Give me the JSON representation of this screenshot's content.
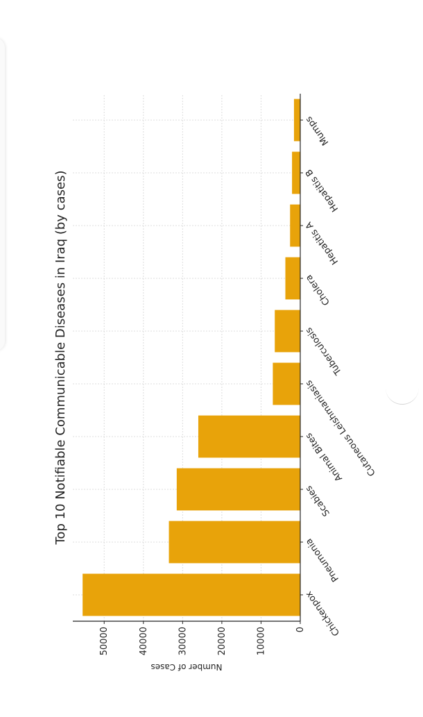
{
  "chart_data": {
    "type": "bar",
    "orientation": "horizontal",
    "title": "Top 10 Notifiable Communicable Diseases in Iraq (by cases)",
    "xlabel": "Number of Cases",
    "ylabel": "",
    "categories": [
      "Chickenpox",
      "Pneumonia",
      "Scabies",
      "Animal Bites",
      "Cutaneous Leishmaniasis",
      "Tuberculosis",
      "Cholera",
      "Hepatitis A",
      "Hepatitis B",
      "Mumps"
    ],
    "values": [
      55500,
      33500,
      31500,
      26000,
      7000,
      6500,
      3800,
      2600,
      2100,
      1600
    ],
    "ticks": [
      0,
      10000,
      20000,
      30000,
      40000,
      50000
    ],
    "tick_labels": [
      "0",
      "10000",
      "20000",
      "30000",
      "40000",
      "50000"
    ],
    "xlim": [
      0,
      58000
    ],
    "grid": true,
    "bar_color": "#E8A30A"
  }
}
